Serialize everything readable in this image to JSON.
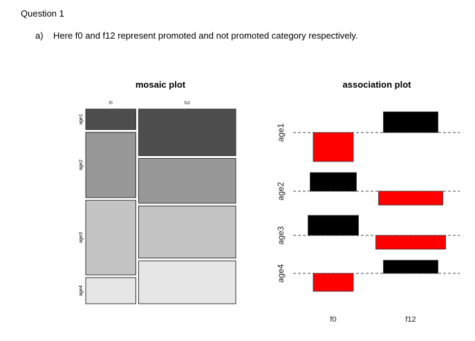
{
  "document": {
    "heading": "Question 1",
    "item_marker": "a)",
    "item_text": "Here f0 and f12 represent promoted and not promoted category respectively."
  },
  "chart_data": [
    {
      "type": "mosaic",
      "title": "mosaic plot",
      "columns": [
        "f0",
        "f12"
      ],
      "rows": [
        "age1",
        "age2",
        "age3",
        "age4"
      ],
      "column_share": [
        0.34,
        0.66
      ],
      "row_share_within_column": {
        "f0": [
          0.11,
          0.35,
          0.4,
          0.14
        ],
        "f12": [
          0.25,
          0.24,
          0.28,
          0.23
        ]
      },
      "row_colors": [
        "#4d4d4d",
        "#989898",
        "#c4c4c4",
        "#e6e6e6"
      ]
    },
    {
      "type": "association",
      "title": "association plot",
      "columns": [
        "f0",
        "f12"
      ],
      "rows": [
        "age1",
        "age2",
        "age3",
        "age4"
      ],
      "residuals": [
        [
          -4.2,
          3.0
        ],
        [
          2.7,
          -2.0
        ],
        [
          2.9,
          -2.0
        ],
        [
          -2.6,
          1.9
        ]
      ],
      "relative_width": [
        [
          5.8,
          7.9
        ],
        [
          6.7,
          9.3
        ],
        [
          7.3,
          10.1
        ],
        [
          5.8,
          7.9
        ]
      ],
      "positive_color": "#000000",
      "negative_color": "#ff0000"
    }
  ]
}
